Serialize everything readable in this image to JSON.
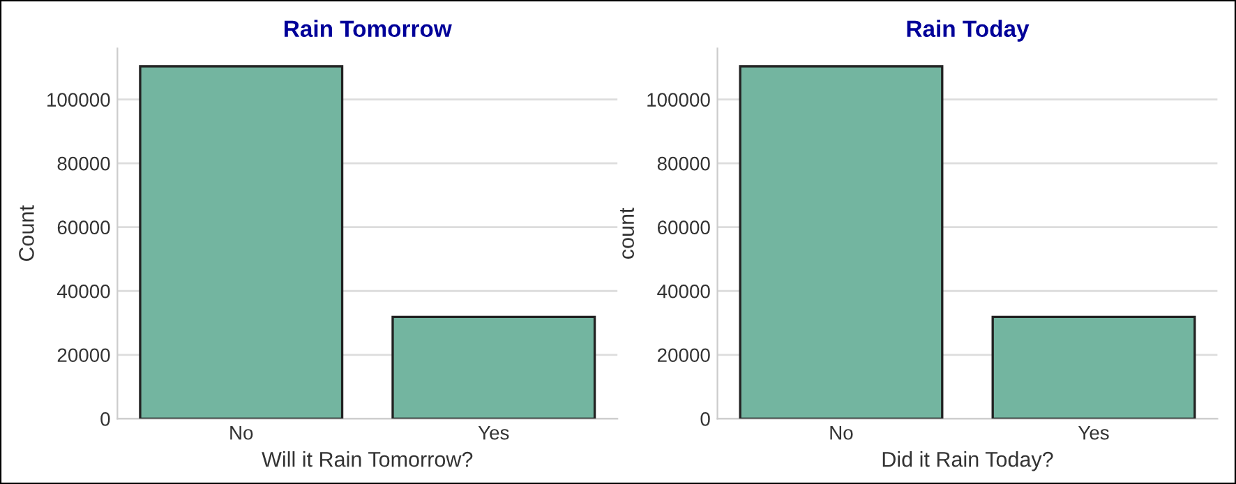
{
  "chart_data": [
    {
      "type": "bar",
      "title": "Rain Tomorrow",
      "xlabel": "Will it Rain Tomorrow?",
      "ylabel": "Count",
      "categories": [
        "No",
        "Yes"
      ],
      "values": [
        110400,
        31900
      ],
      "color": "#73b5a0",
      "ylim": [
        0,
        116000
      ],
      "yticks": [
        0,
        20000,
        40000,
        60000,
        80000,
        100000
      ],
      "grid": "y"
    },
    {
      "type": "bar",
      "title": "Rain Today",
      "xlabel": "Did it Rain Today?",
      "ylabel": "count",
      "categories": [
        "No",
        "Yes"
      ],
      "values": [
        110400,
        31900
      ],
      "color": "#73b5a0",
      "ylim": [
        0,
        116000
      ],
      "yticks": [
        0,
        20000,
        40000,
        60000,
        80000,
        100000
      ],
      "grid": "y"
    }
  ]
}
